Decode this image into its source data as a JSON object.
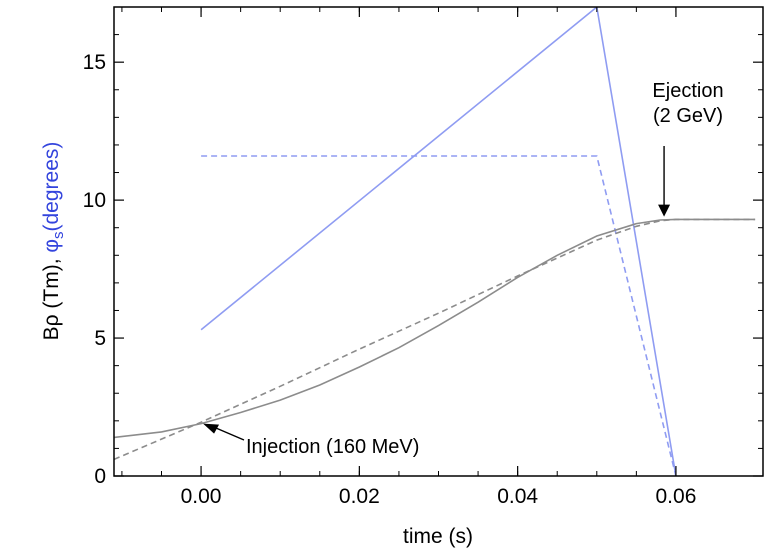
{
  "chart_data": {
    "type": "line",
    "xlabel": "time (s)",
    "ylabel_parts": [
      {
        "text": "Bρ (Tm), ",
        "color": "#000000"
      },
      {
        "text": "φ",
        "color": "#3344dd"
      },
      {
        "text": "s",
        "color": "#3344dd",
        "sub": true
      },
      {
        "text": "(degrees)",
        "color": "#3344dd"
      }
    ],
    "xlim": [
      -0.011,
      0.071
    ],
    "ylim": [
      0,
      17
    ],
    "xticks": [
      0.0,
      0.02,
      0.04,
      0.06
    ],
    "xtick_labels": [
      "0.00",
      "0.02",
      "0.04",
      "0.06"
    ],
    "yticks": [
      0,
      5,
      10,
      15
    ],
    "ytick_labels": [
      "0",
      "5",
      "10",
      "15"
    ],
    "grid": false,
    "series": [
      {
        "style": "solid",
        "color": "#8f9cf2",
        "x": [
          0.0,
          0.05,
          0.06
        ],
        "y": [
          5.3,
          17.0,
          0.0
        ]
      },
      {
        "style": "dashed",
        "color": "#8f9cf2",
        "x": [
          0.0,
          0.05,
          0.06
        ],
        "y": [
          11.6,
          11.6,
          0.0
        ]
      },
      {
        "style": "solid",
        "color": "#8c8c8c",
        "x": [
          -0.011,
          -0.005,
          0.0,
          0.005,
          0.01,
          0.015,
          0.02,
          0.025,
          0.03,
          0.035,
          0.04,
          0.045,
          0.05,
          0.055,
          0.058,
          0.06,
          0.065,
          0.07
        ],
        "y": [
          1.4,
          1.6,
          1.9,
          2.3,
          2.75,
          3.3,
          3.95,
          4.65,
          5.45,
          6.3,
          7.2,
          8.0,
          8.7,
          9.15,
          9.28,
          9.3,
          9.3,
          9.3
        ]
      },
      {
        "style": "dashed",
        "color": "#8c8c8c",
        "x": [
          -0.011,
          0.0,
          0.01,
          0.02,
          0.03,
          0.04,
          0.05,
          0.055,
          0.058,
          0.06,
          0.065,
          0.07
        ],
        "y": [
          0.6,
          1.95,
          3.25,
          4.6,
          5.9,
          7.25,
          8.55,
          9.05,
          9.25,
          9.3,
          9.3,
          9.3
        ]
      }
    ],
    "annotations": [
      {
        "lines": [
          "Injection (160 MeV)"
        ],
        "target": [
          0.0,
          1.9
        ]
      },
      {
        "lines": [
          "Ejection",
          "(2 GeV)"
        ],
        "target": [
          0.0585,
          9.33
        ]
      }
    ]
  }
}
